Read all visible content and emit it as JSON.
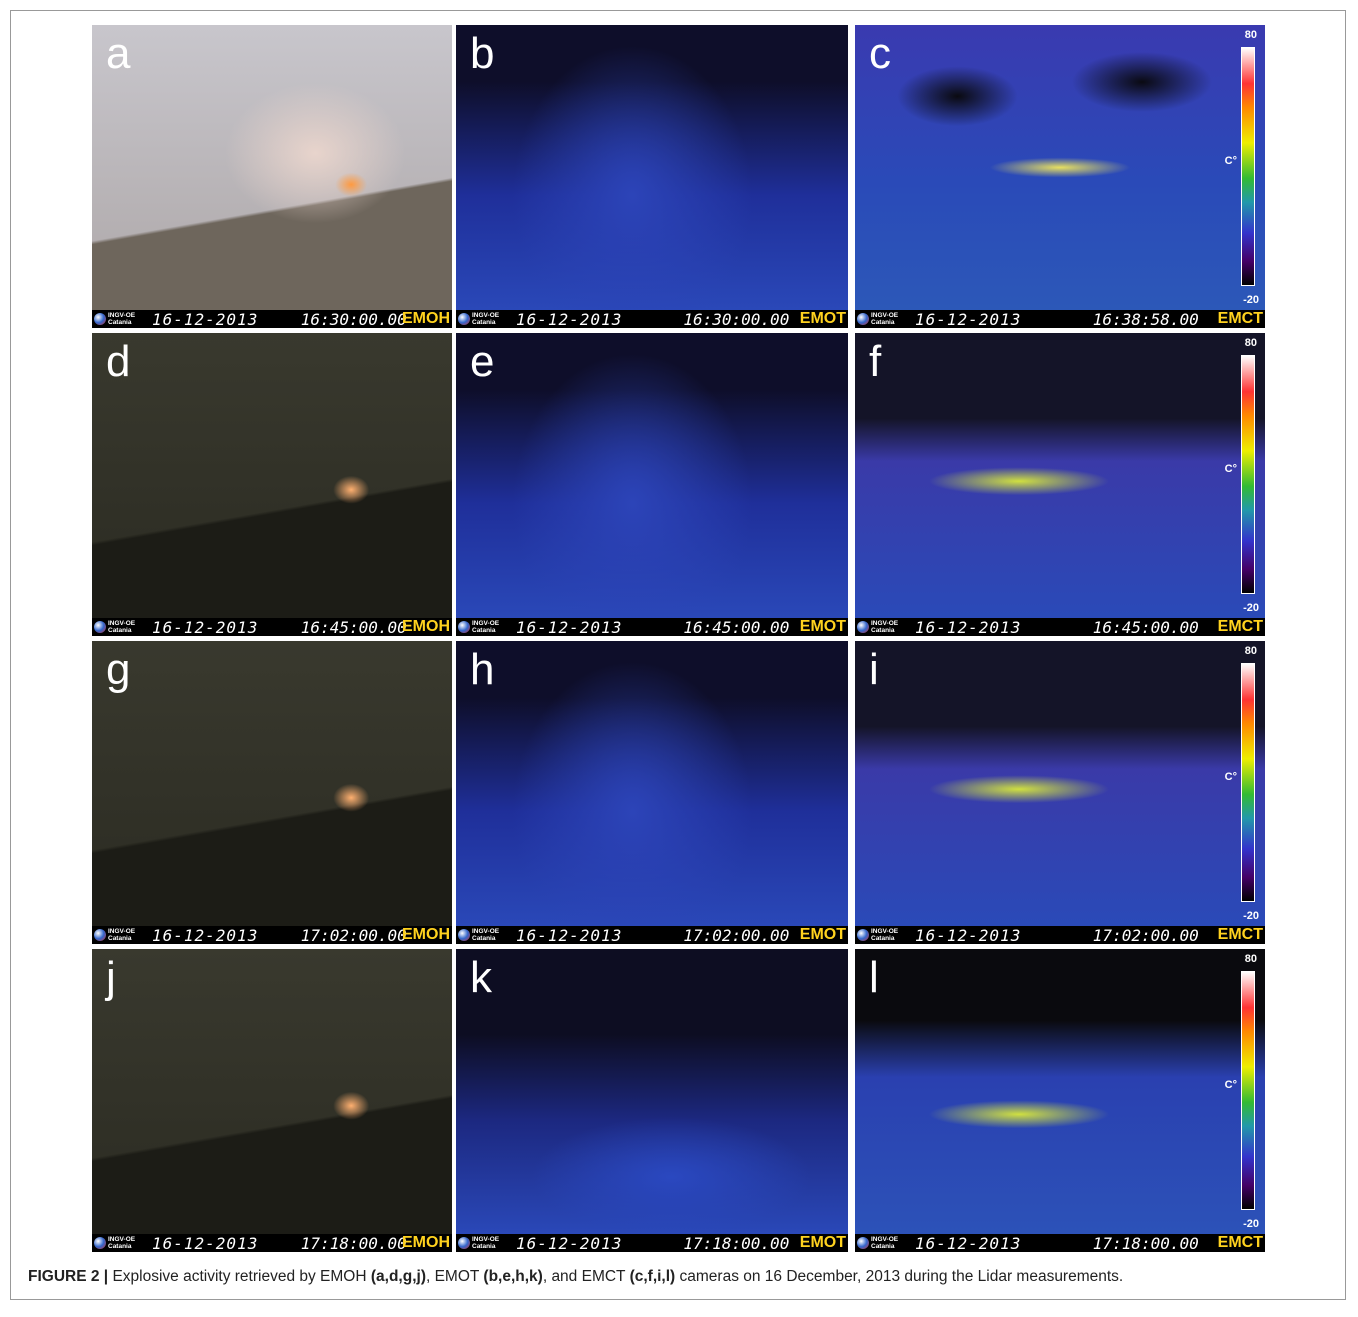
{
  "figure": {
    "panels": [
      {
        "label": "a",
        "date": "16-12-2013",
        "time": "16:30:00.00",
        "camera": "EMOH"
      },
      {
        "label": "b",
        "date": "16-12-2013",
        "time": "16:30:00.00",
        "camera": "EMOT"
      },
      {
        "label": "c",
        "date": "16-12-2013",
        "time": "16:38:58.00",
        "camera": "EMCT",
        "colorbar": {
          "max": 80,
          "unit": "C°",
          "min": -20
        }
      },
      {
        "label": "d",
        "date": "16-12-2013",
        "time": "16:45:00.00",
        "camera": "EMOH"
      },
      {
        "label": "e",
        "date": "16-12-2013",
        "time": "16:45:00.00",
        "camera": "EMOT"
      },
      {
        "label": "f",
        "date": "16-12-2013",
        "time": "16:45:00.00",
        "camera": "EMCT",
        "colorbar": {
          "max": 80,
          "unit": "C°",
          "min": -20
        }
      },
      {
        "label": "g",
        "date": "16-12-2013",
        "time": "17:02:00.00",
        "camera": "EMOH"
      },
      {
        "label": "h",
        "date": "16-12-2013",
        "time": "17:02:00.00",
        "camera": "EMOT"
      },
      {
        "label": "i",
        "date": "16-12-2013",
        "time": "17:02:00.00",
        "camera": "EMCT",
        "colorbar": {
          "max": 80,
          "unit": "C°",
          "min": -20
        }
      },
      {
        "label": "j",
        "date": "16-12-2013",
        "time": "17:18:00.00",
        "camera": "EMOH"
      },
      {
        "label": "k",
        "date": "16-12-2013",
        "time": "17:18:00.00",
        "camera": "EMOT"
      },
      {
        "label": "l",
        "date": "16-12-2013",
        "time": "17:18:00.00",
        "camera": "EMCT",
        "colorbar": {
          "max": 80,
          "unit": "C°",
          "min": -20
        }
      }
    ],
    "logo": {
      "line1": "INGV-OE",
      "line2": "Catania"
    },
    "caption": {
      "label": "FIGURE 2 |",
      "parts": [
        "Explosive activity retrieved by EMOH",
        "(a,d,g,j)",
        ", EMOT",
        "(b,e,h,k)",
        ", and EMCT",
        "(c,f,i,l)",
        "cameras on 16 December, 2013 during the Lidar measurements."
      ]
    }
  }
}
